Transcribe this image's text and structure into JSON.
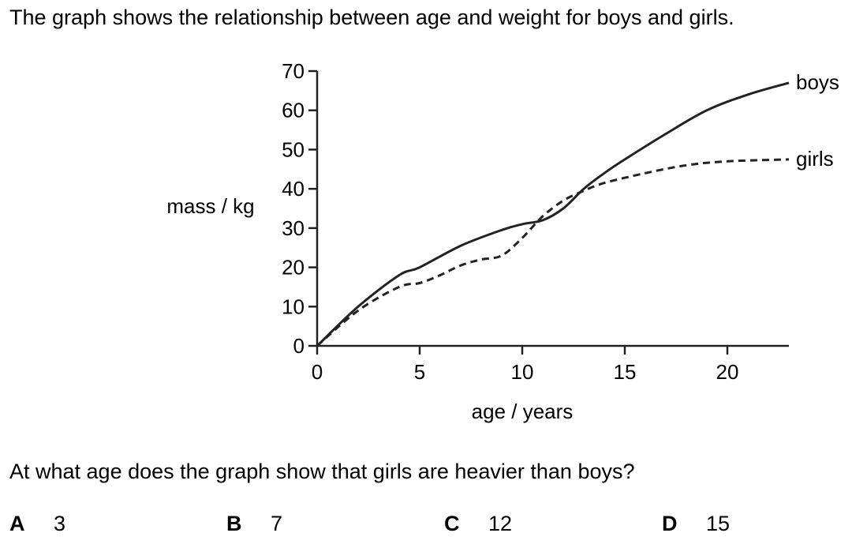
{
  "question": {
    "intro": "The graph shows the relationship between age and weight for boys and girls.",
    "prompt": "At what age does the graph show that girls are heavier than boys?",
    "options": [
      {
        "letter": "A",
        "value": "3"
      },
      {
        "letter": "B",
        "value": "7"
      },
      {
        "letter": "C",
        "value": "12"
      },
      {
        "letter": "D",
        "value": "15"
      }
    ]
  },
  "chart_data": {
    "type": "line",
    "title": "",
    "xlabel": "age / years",
    "ylabel": "mass / kg",
    "xlim": [
      0,
      23
    ],
    "ylim": [
      0,
      70
    ],
    "xticks": [
      0,
      5,
      10,
      15,
      20
    ],
    "yticks": [
      0,
      10,
      20,
      30,
      40,
      50,
      60,
      70
    ],
    "grid": false,
    "legend": "series labels at right end of each line",
    "series": [
      {
        "name": "boys",
        "style": "solid",
        "color": "#222222",
        "points": [
          [
            0,
            0
          ],
          [
            2,
            10
          ],
          [
            4,
            18
          ],
          [
            5,
            20
          ],
          [
            7,
            25.5
          ],
          [
            9,
            29.5
          ],
          [
            10,
            31
          ],
          [
            11,
            32
          ],
          [
            12,
            35
          ],
          [
            13,
            40
          ],
          [
            14,
            44
          ],
          [
            15,
            47.5
          ],
          [
            17,
            54
          ],
          [
            19,
            60
          ],
          [
            21,
            64
          ],
          [
            23,
            67
          ]
        ]
      },
      {
        "name": "girls",
        "style": "dashed",
        "color": "#222222",
        "points": [
          [
            0,
            0
          ],
          [
            2,
            9
          ],
          [
            4,
            15
          ],
          [
            5,
            16
          ],
          [
            6,
            18
          ],
          [
            7,
            20.5
          ],
          [
            8,
            22
          ],
          [
            9,
            23
          ],
          [
            10,
            27.5
          ],
          [
            11,
            33
          ],
          [
            12,
            37
          ],
          [
            13,
            39.5
          ],
          [
            14,
            41.5
          ],
          [
            16,
            44
          ],
          [
            18,
            46
          ],
          [
            20,
            47
          ],
          [
            23,
            47.5
          ]
        ]
      }
    ]
  }
}
